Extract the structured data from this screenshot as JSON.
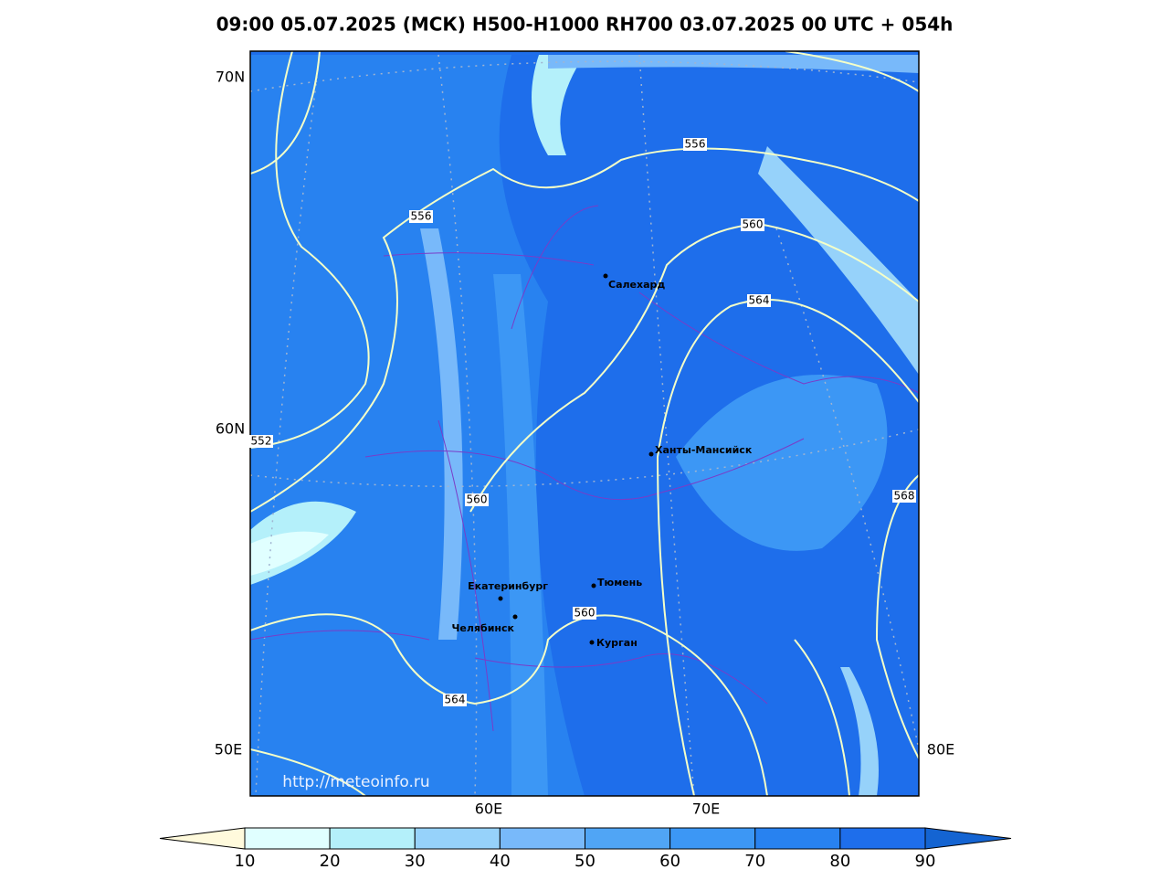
{
  "title": "09:00 05.07.2025 (МСК) H500-H1000 RH700 03.07.2025 00 UTC + 054h",
  "map": {
    "lat_labels": [
      "70N",
      "60N"
    ],
    "lon_labels": [
      "50E",
      "60E",
      "70E",
      "80E"
    ],
    "contour_labels": [
      "556",
      "556",
      "560",
      "564",
      "552",
      "560",
      "568",
      "560",
      "564"
    ],
    "cities": [
      "Салехард",
      "Ханты-Мансийск",
      "Тюмень",
      "Екатеринбург",
      "Челябинск",
      "Курган"
    ],
    "credit": "http://meteoinfo.ru"
  },
  "colorbar": {
    "labels": [
      10,
      20,
      30,
      40,
      50,
      60,
      70,
      80,
      90
    ],
    "colors": [
      "#e0ffff",
      "#b4f0fa",
      "#96d2fa",
      "#78b9fa",
      "#50a5f5",
      "#3c97f5",
      "#2882f0",
      "#1e6eeb"
    ],
    "under_color": "#fffadc",
    "over_color": "#1464d2"
  }
}
